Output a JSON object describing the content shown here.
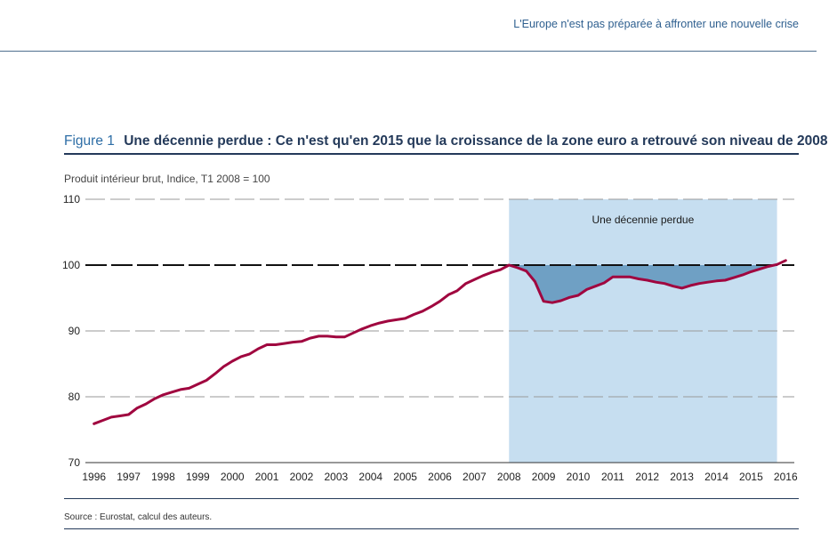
{
  "header": {
    "running_head": "L'Europe n'est pas préparée à affronter une nouvelle crise"
  },
  "figure": {
    "label": "Figure 1",
    "title": "Une décennie perdue : Ce n'est qu'en 2015 que la croissance de la zone euro a retrouvé son niveau de 2008",
    "source": "Source : Eurostat, calcul des auteurs."
  },
  "chart_data": {
    "type": "line",
    "subtitle": "Produit intérieur brut, Indice, T1 2008 = 100",
    "ylim": [
      70,
      110
    ],
    "yticks": [
      70,
      80,
      90,
      100,
      110
    ],
    "xlim": [
      1995.75,
      2016.25
    ],
    "x_tick_labels": [
      "1996",
      "1997",
      "1998",
      "1999",
      "2000",
      "2001",
      "2002",
      "2003",
      "2004",
      "2005",
      "2006",
      "2007",
      "2008",
      "2009",
      "2010",
      "2011",
      "2012",
      "2013",
      "2014",
      "2015",
      "2016"
    ],
    "reference_line": 100,
    "grid": "horizontal-dashed",
    "highlight": {
      "x_start": 2008.0,
      "x_end": 2015.75,
      "label": "Une décennie perdue",
      "color": "#c6def0"
    },
    "shaded_gap_color": "#6fa0c4",
    "line_color": "#a0063f",
    "series": [
      {
        "x": [
          1996.0,
          1996.25,
          1996.5,
          1996.75,
          1997.0,
          1997.25,
          1997.5,
          1997.75,
          1998.0,
          1998.25,
          1998.5,
          1998.75,
          1999.0,
          1999.25,
          1999.5,
          1999.75,
          2000.0,
          2000.25,
          2000.5,
          2000.75,
          2001.0,
          2001.25,
          2001.5,
          2001.75,
          2002.0,
          2002.25,
          2002.5,
          2002.75,
          2003.0,
          2003.25,
          2003.5,
          2003.75,
          2004.0,
          2004.25,
          2004.5,
          2004.75,
          2005.0,
          2005.25,
          2005.5,
          2005.75,
          2006.0,
          2006.25,
          2006.5,
          2006.75,
          2007.0,
          2007.25,
          2007.5,
          2007.75,
          2008.0,
          2008.25,
          2008.5,
          2008.75,
          2009.0,
          2009.25,
          2009.5,
          2009.75,
          2010.0,
          2010.25,
          2010.5,
          2010.75,
          2011.0,
          2011.25,
          2011.5,
          2011.75,
          2012.0,
          2012.25,
          2012.5,
          2012.75,
          2013.0,
          2013.25,
          2013.5,
          2013.75,
          2014.0,
          2014.25,
          2014.5,
          2014.75,
          2015.0,
          2015.25,
          2015.5,
          2015.75,
          2016.0
        ],
        "values": [
          75.9,
          76.4,
          76.9,
          77.1,
          77.3,
          78.3,
          78.9,
          79.7,
          80.3,
          80.7,
          81.1,
          81.3,
          81.9,
          82.5,
          83.5,
          84.6,
          85.4,
          86.1,
          86.5,
          87.3,
          87.9,
          87.9,
          88.1,
          88.3,
          88.4,
          88.9,
          89.2,
          89.2,
          89.1,
          89.1,
          89.7,
          90.3,
          90.8,
          91.2,
          91.5,
          91.7,
          91.9,
          92.5,
          93.0,
          93.7,
          94.5,
          95.5,
          96.1,
          97.2,
          97.8,
          98.4,
          98.9,
          99.3,
          100.0,
          99.6,
          99.1,
          97.5,
          94.5,
          94.3,
          94.6,
          95.1,
          95.4,
          96.3,
          96.8,
          97.3,
          98.2,
          98.2,
          98.2,
          97.9,
          97.7,
          97.4,
          97.2,
          96.8,
          96.5,
          96.9,
          97.2,
          97.4,
          97.6,
          97.7,
          98.1,
          98.5,
          99.0,
          99.4,
          99.8,
          100.1,
          100.7
        ]
      }
    ]
  }
}
